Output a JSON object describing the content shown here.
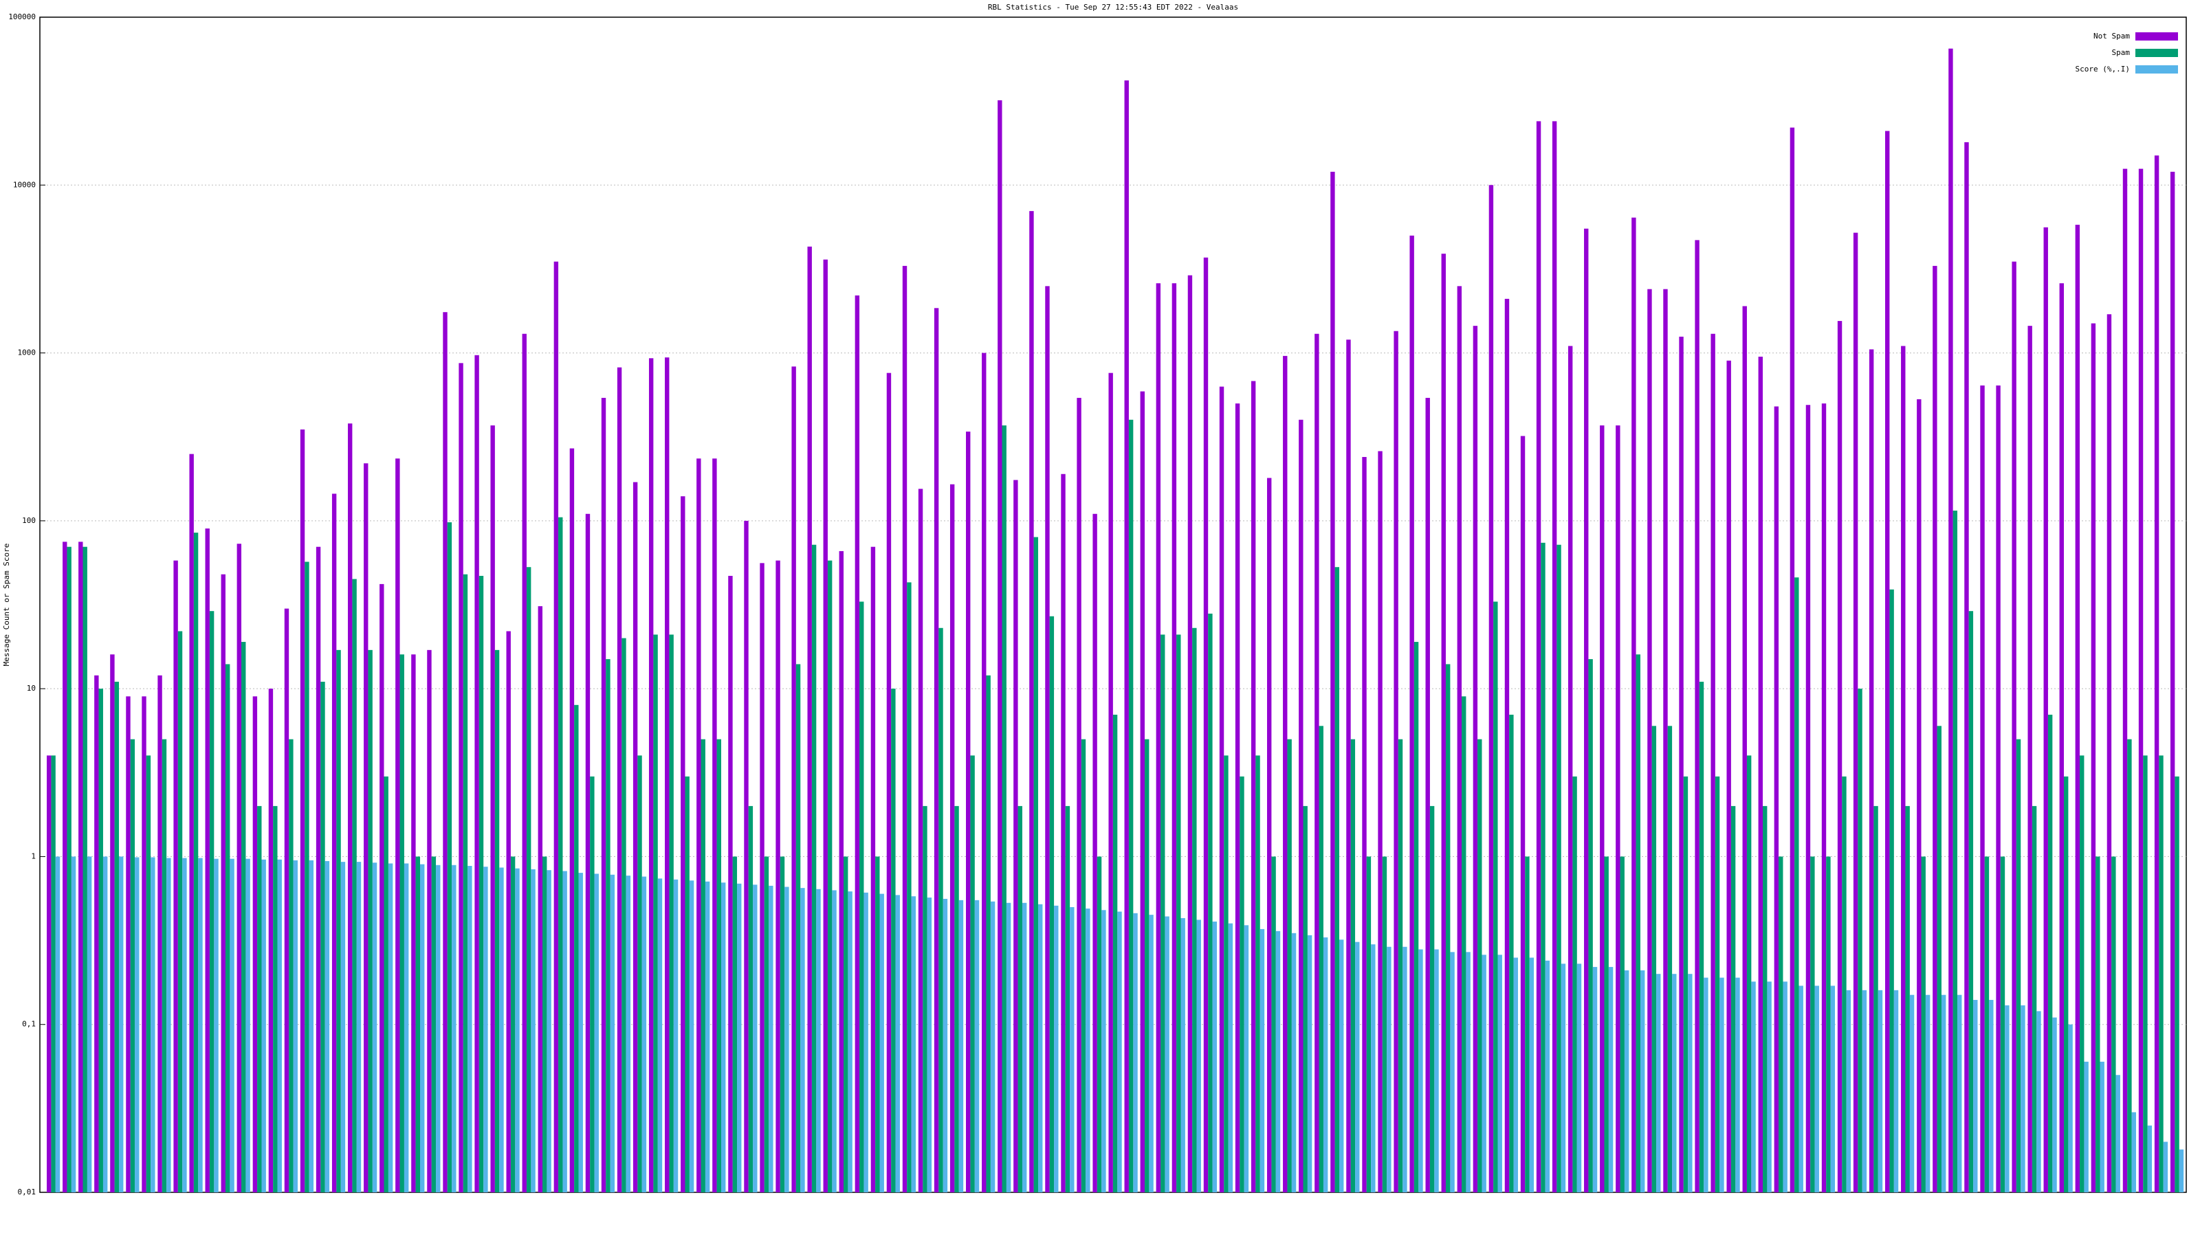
{
  "chart_data": {
    "type": "bar",
    "title": "RBL Statistics - Tue Sep 27 12:55:43 EDT 2022 - Vealaas",
    "y_label": "Message Count or Spam Score",
    "log_scale": true,
    "grid": true,
    "legend": "top-right",
    "ylim": [
      0.01,
      100000
    ],
    "yticks": [
      {
        "value": 0.01,
        "label": "0,01"
      },
      {
        "value": 0.1,
        "label": "0,1"
      },
      1,
      10,
      100,
      1000,
      10000,
      100000
    ],
    "categories": [
      null,
      null,
      null,
      null,
      null,
      null,
      null,
      null,
      null,
      null,
      null,
      null,
      null,
      null,
      null,
      null,
      null,
      null,
      null,
      null,
      null,
      null,
      null,
      null,
      null,
      null,
      null,
      null,
      null,
      null,
      null,
      null,
      null,
      null,
      null,
      null,
      null,
      null,
      null,
      null,
      null,
      null,
      null,
      null,
      null,
      null,
      null,
      null,
      null,
      null,
      null,
      null,
      null,
      null,
      null,
      null,
      null,
      null,
      null,
      null,
      null,
      null,
      null,
      null,
      null,
      null,
      null,
      null,
      null,
      null,
      null,
      null,
      null,
      null,
      null,
      null,
      null,
      null,
      null,
      null,
      null,
      null,
      null,
      null,
      null,
      null,
      null,
      null,
      null,
      null,
      null,
      null,
      null,
      null,
      null,
      null,
      null,
      null,
      null,
      null,
      null,
      null,
      null,
      null,
      null,
      null,
      null,
      null,
      null,
      null,
      null,
      null,
      null,
      null,
      null,
      null,
      null,
      null,
      null,
      null,
      null,
      null,
      null,
      null,
      null,
      null,
      null,
      null,
      null,
      null,
      null,
      null,
      null,
      null,
      null
    ],
    "series": [
      {
        "name": "Not Spam",
        "color": "#9400d3",
        "values": [
          4,
          75,
          75,
          12,
          16,
          9,
          9,
          12,
          58,
          250,
          90,
          48,
          73,
          9,
          10,
          30,
          350,
          70,
          145,
          380,
          220,
          42,
          235,
          16,
          17,
          1750,
          870,
          970,
          370,
          22,
          1300,
          31,
          3500,
          270,
          110,
          540,
          820,
          170,
          930,
          940,
          140,
          235,
          235,
          47,
          100,
          56,
          58,
          830,
          4300,
          3600,
          66,
          2200,
          70,
          760,
          3300,
          155,
          1850,
          165,
          340,
          1000,
          32000,
          175,
          7000,
          2500,
          190,
          540,
          110,
          760,
          42000,
          590,
          2600,
          2600,
          2900,
          3700,
          630,
          500,
          680,
          180,
          960,
          400,
          1300,
          12000,
          1200,
          240,
          260,
          1350,
          5000,
          540,
          3900,
          2500,
          1450,
          10000,
          2100,
          320,
          24000,
          24000,
          1100,
          5500,
          370,
          370,
          6400,
          2400,
          2400,
          1250,
          4700,
          1300,
          900,
          1900,
          950,
          480,
          22000,
          490,
          500,
          1550,
          5200,
          1050,
          21000,
          1100,
          530,
          3300,
          65000,
          18000,
          640,
          640,
          3500,
          1450,
          5600,
          2600,
          5800,
          1500,
          1700,
          12500,
          12500,
          15000,
          12000
        ]
      },
      {
        "name": "Spam",
        "color": "#009e73",
        "values": [
          4,
          70,
          70,
          10,
          11,
          5,
          4,
          5,
          22,
          85,
          29,
          14,
          19,
          2,
          2,
          5,
          57,
          11,
          17,
          45,
          17,
          3,
          16,
          1,
          1,
          98,
          48,
          47,
          17,
          1,
          53,
          1,
          105,
          8,
          3,
          15,
          20,
          4,
          21,
          21,
          3,
          5,
          5,
          1,
          2,
          1,
          1,
          14,
          72,
          58,
          1,
          33,
          1,
          10,
          43,
          2,
          23,
          2,
          4,
          12,
          370,
          2,
          80,
          27,
          2,
          5,
          1,
          7,
          400,
          5,
          21,
          21,
          23,
          28,
          4,
          3,
          4,
          1,
          5,
          2,
          6,
          53,
          5,
          1,
          1,
          5,
          19,
          2,
          14,
          9,
          5,
          33,
          7,
          1,
          74,
          72,
          3,
          15,
          1,
          1,
          16,
          6,
          6,
          3,
          11,
          3,
          2,
          4,
          2,
          1,
          46,
          1,
          1,
          3,
          10,
          2,
          39,
          2,
          1,
          6,
          115,
          29,
          1,
          1,
          5,
          2,
          7,
          3,
          4,
          1,
          1,
          5,
          4,
          4,
          3
        ]
      },
      {
        "name": "Score (%,.I)",
        "color": "#56b4e9",
        "values": [
          1,
          1,
          1,
          1,
          1,
          0.99,
          0.99,
          0.98,
          0.98,
          0.98,
          0.97,
          0.97,
          0.97,
          0.96,
          0.96,
          0.95,
          0.95,
          0.94,
          0.93,
          0.93,
          0.92,
          0.91,
          0.91,
          0.9,
          0.89,
          0.89,
          0.88,
          0.87,
          0.86,
          0.85,
          0.84,
          0.83,
          0.82,
          0.8,
          0.79,
          0.78,
          0.77,
          0.76,
          0.74,
          0.73,
          0.72,
          0.71,
          0.7,
          0.69,
          0.68,
          0.67,
          0.66,
          0.65,
          0.64,
          0.63,
          0.62,
          0.61,
          0.6,
          0.59,
          0.58,
          0.57,
          0.56,
          0.55,
          0.55,
          0.54,
          0.53,
          0.53,
          0.52,
          0.51,
          0.5,
          0.49,
          0.48,
          0.47,
          0.46,
          0.45,
          0.44,
          0.43,
          0.42,
          0.41,
          0.4,
          0.39,
          0.37,
          0.36,
          0.35,
          0.34,
          0.33,
          0.32,
          0.31,
          0.3,
          0.29,
          0.29,
          0.28,
          0.28,
          0.27,
          0.27,
          0.26,
          0.26,
          0.25,
          0.25,
          0.24,
          0.23,
          0.23,
          0.22,
          0.22,
          0.21,
          0.21,
          0.2,
          0.2,
          0.2,
          0.19,
          0.19,
          0.19,
          0.18,
          0.18,
          0.18,
          0.17,
          0.17,
          0.17,
          0.16,
          0.16,
          0.16,
          0.16,
          0.15,
          0.15,
          0.15,
          0.15,
          0.14,
          0.14,
          0.13,
          0.13,
          0.12,
          0.11,
          0.1,
          0.06,
          0.06,
          0.05,
          0.03,
          0.025,
          0.02,
          0.018
        ]
      }
    ]
  }
}
